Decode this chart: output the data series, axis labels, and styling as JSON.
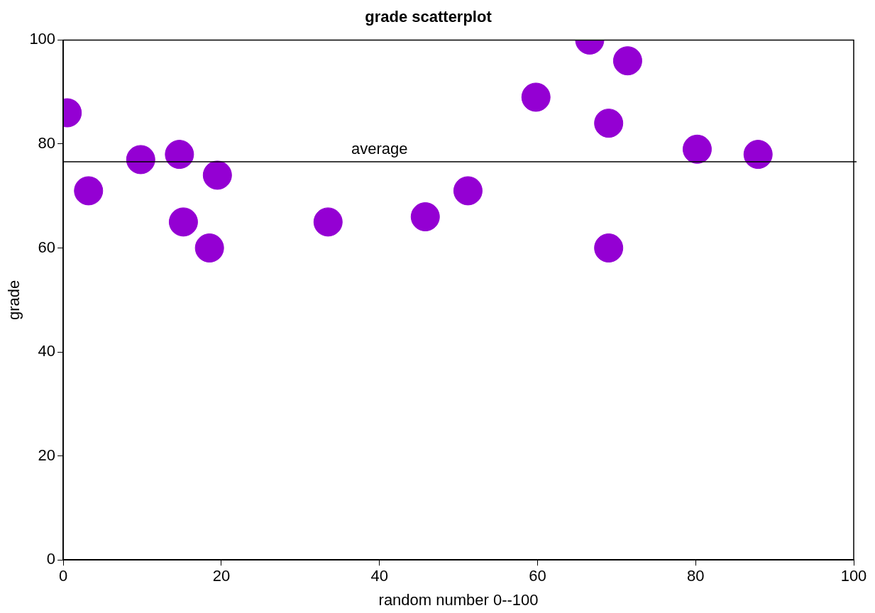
{
  "chart_data": {
    "type": "scatter",
    "title": "grade scatterplot",
    "xlabel": "random number 0--100",
    "ylabel": "grade",
    "x": [
      0.5,
      3.2,
      9.8,
      14.7,
      15.2,
      18.5,
      19.5,
      33.5,
      45.8,
      51.2,
      59.8,
      66.6,
      69,
      69,
      71.4,
      80.2,
      87.9
    ],
    "series": [
      {
        "color": "#9400d3",
        "values": [
          86,
          71,
          77,
          78,
          65,
          60,
          74,
          65,
          66,
          71,
          89,
          100,
          84,
          60,
          96,
          79,
          78
        ]
      }
    ],
    "xlim": [
      0,
      100
    ],
    "ylim": [
      0,
      100
    ],
    "xticks": [
      0,
      20,
      40,
      60,
      80,
      100
    ],
    "yticks": [
      0,
      20,
      40,
      60,
      80,
      100
    ],
    "marker": "circle",
    "grid": false,
    "legend": false,
    "ref_lines": [
      {
        "axis": "y",
        "value": 76.6,
        "label": "average",
        "color": "#000000"
      }
    ]
  }
}
